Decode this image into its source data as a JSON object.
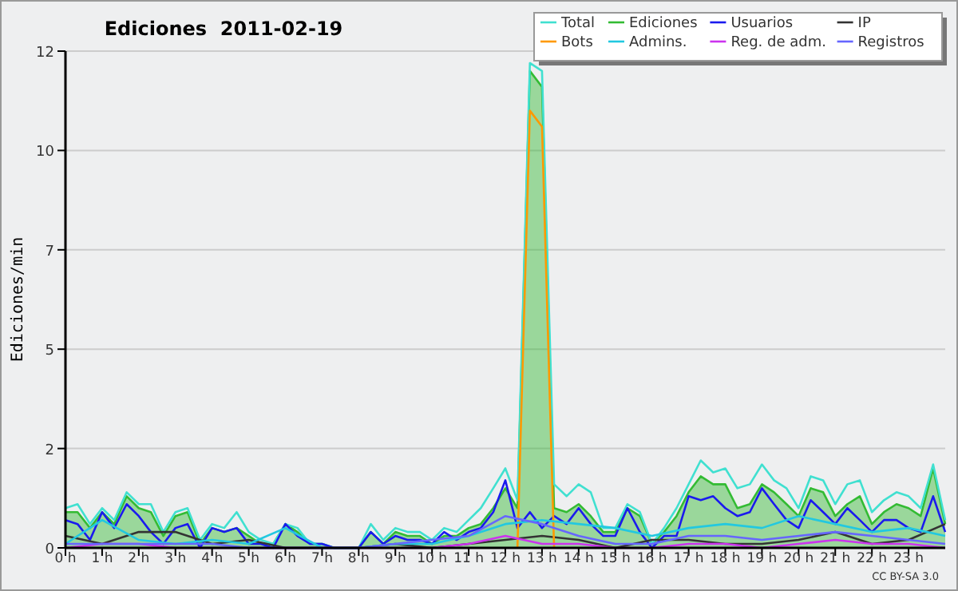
{
  "chart_data": {
    "type": "line",
    "title": "Ediciones  2011-02-19",
    "ylabel": "Ediciones/min",
    "annotations": [
      "CC BY-SA 3.0"
    ],
    "xlim": [
      0,
      24
    ],
    "xticks": [
      {
        "value": 0,
        "label": "0 h"
      },
      {
        "value": 1,
        "label": "1 h"
      },
      {
        "value": 2,
        "label": "2 h"
      },
      {
        "value": 3,
        "label": "3 h"
      },
      {
        "value": 4,
        "label": "4 h"
      },
      {
        "value": 5,
        "label": "5 h"
      },
      {
        "value": 6,
        "label": "6 h"
      },
      {
        "value": 7,
        "label": "7 h"
      },
      {
        "value": 8,
        "label": "8 h"
      },
      {
        "value": 9,
        "label": "9 h"
      },
      {
        "value": 10,
        "label": "10 h"
      },
      {
        "value": 11,
        "label": "11 h"
      },
      {
        "value": 12,
        "label": "12 h"
      },
      {
        "value": 13,
        "label": "13 h"
      },
      {
        "value": 14,
        "label": "14 h"
      },
      {
        "value": 15,
        "label": "15 h"
      },
      {
        "value": 16,
        "label": "16 h"
      },
      {
        "value": 17,
        "label": "17 h"
      },
      {
        "value": 18,
        "label": "18 h"
      },
      {
        "value": 19,
        "label": "19 h"
      },
      {
        "value": 20,
        "label": "20 h"
      },
      {
        "value": 21,
        "label": "21 h"
      },
      {
        "value": 22,
        "label": "22 h"
      },
      {
        "value": 23,
        "label": "23 h"
      }
    ],
    "ylim": [
      0,
      12.5
    ],
    "yticks": [
      0,
      {
        "value": 2.5,
        "label": "2"
      },
      5,
      {
        "value": 7.5,
        "label": "7"
      },
      10,
      {
        "value": 12.5,
        "label": "12"
      }
    ],
    "grid": "y",
    "legend": "top right",
    "marker": "none",
    "line_style": "solid",
    "x": [
      0,
      0.33,
      0.67,
      1,
      1.33,
      1.67,
      2,
      2.33,
      2.67,
      3,
      3.33,
      3.67,
      4,
      4.33,
      4.67,
      5,
      5.33,
      5.67,
      6,
      6.33,
      6.67,
      7,
      7.33,
      7.67,
      8,
      8.33,
      8.67,
      9,
      9.33,
      9.67,
      10,
      10.33,
      10.67,
      11,
      11.33,
      11.67,
      12,
      12.33,
      12.67,
      13,
      13.33,
      13.67,
      14,
      14.33,
      14.67,
      15,
      15.33,
      15.67,
      16,
      16.33,
      16.67,
      17,
      17.33,
      17.67,
      18,
      18.33,
      18.67,
      19,
      19.33,
      19.67,
      20,
      20.33,
      20.67,
      21,
      21.33,
      21.67,
      22,
      22.33,
      22.67,
      23,
      23.33,
      23.67,
      24
    ],
    "series": [
      {
        "name": "Total",
        "color": "#40e0d0",
        "values": [
          1.0,
          1.1,
          0.6,
          1.0,
          0.7,
          1.4,
          1.1,
          1.1,
          0.4,
          0.9,
          1.0,
          0.2,
          0.6,
          0.5,
          0.9,
          0.4,
          0.2,
          0.1,
          0.6,
          0.5,
          0.1,
          0.1,
          0,
          0,
          0,
          0.6,
          0.2,
          0.5,
          0.4,
          0.4,
          0.2,
          0.5,
          0.4,
          0.7,
          1.0,
          1.5,
          2.0,
          1.2,
          12.2,
          12.0,
          1.6,
          1.3,
          1.6,
          1.4,
          0.5,
          0.5,
          1.1,
          0.9,
          0.1,
          0.5,
          1.0,
          1.6,
          2.2,
          1.9,
          2.0,
          1.5,
          1.6,
          2.1,
          1.7,
          1.5,
          1.0,
          1.8,
          1.7,
          1.1,
          1.6,
          1.7,
          0.9,
          1.2,
          1.4,
          1.3,
          1.0,
          2.1,
          0.7
        ]
      },
      {
        "name": "Ediciones",
        "type": "area",
        "color": "#33bb33",
        "values": [
          0.9,
          0.9,
          0.5,
          0.9,
          0.6,
          1.3,
          1.0,
          0.9,
          0.3,
          0.8,
          0.9,
          0.1,
          0.5,
          0.4,
          0.5,
          0.3,
          0.1,
          0.1,
          0.6,
          0.4,
          0.1,
          0.1,
          0,
          0,
          0,
          0.4,
          0.1,
          0.4,
          0.3,
          0.3,
          0.1,
          0.3,
          0.3,
          0.5,
          0.6,
          1.0,
          1.5,
          1.0,
          12.0,
          11.6,
          1.0,
          0.9,
          1.1,
          0.8,
          0.4,
          0.4,
          1.0,
          0.8,
          0.1,
          0.4,
          0.8,
          1.4,
          1.8,
          1.6,
          1.6,
          1.0,
          1.1,
          1.6,
          1.4,
          1.1,
          0.8,
          1.5,
          1.4,
          0.8,
          1.1,
          1.3,
          0.6,
          0.9,
          1.1,
          1.0,
          0.8,
          2.0,
          0.6
        ]
      },
      {
        "name": "Usuarios",
        "color": "#1a1aee",
        "values": [
          0.7,
          0.6,
          0.2,
          0.9,
          0.5,
          1.1,
          0.8,
          0.4,
          0.1,
          0.5,
          0.6,
          0,
          0.5,
          0.4,
          0.5,
          0.1,
          0.1,
          0,
          0.6,
          0.3,
          0.1,
          0.1,
          0,
          0,
          0,
          0.4,
          0.1,
          0.3,
          0.2,
          0.2,
          0.1,
          0.4,
          0.2,
          0.4,
          0.5,
          0.9,
          1.7,
          0.5,
          0.9,
          0.5,
          0.8,
          0.6,
          1.0,
          0.6,
          0.3,
          0.3,
          1.0,
          0.4,
          0,
          0.3,
          0.3,
          1.3,
          1.2,
          1.3,
          1.0,
          0.8,
          0.9,
          1.5,
          1.1,
          0.7,
          0.5,
          1.2,
          0.9,
          0.6,
          1.0,
          0.7,
          0.4,
          0.7,
          0.7,
          0.5,
          0.4,
          1.3,
          0.4
        ]
      },
      {
        "name": "IP",
        "color": "#333333",
        "x": [
          0,
          1,
          2,
          3,
          4,
          5,
          6,
          7,
          8,
          9,
          10,
          11,
          12,
          13,
          14,
          15,
          16,
          17,
          18,
          19,
          20,
          21,
          22,
          23,
          24
        ],
        "values": [
          0.3,
          0.1,
          0.4,
          0.4,
          0.1,
          0.2,
          0,
          0,
          0,
          0.1,
          0,
          0.1,
          0.2,
          0.3,
          0.2,
          0,
          0.2,
          0.2,
          0.1,
          0.1,
          0.2,
          0.4,
          0.1,
          0.2,
          0.6
        ]
      },
      {
        "name": "Bots",
        "color": "#ff9900",
        "values": [
          null,
          null,
          null,
          null,
          null,
          null,
          null,
          null,
          null,
          null,
          null,
          null,
          null,
          null,
          null,
          null,
          null,
          null,
          null,
          null,
          null,
          null,
          null,
          null,
          null,
          null,
          null,
          null,
          null,
          null,
          null,
          null,
          null,
          null,
          null,
          null,
          null,
          0,
          11.0,
          10.6,
          0,
          null,
          null,
          null,
          null,
          null,
          null,
          null,
          null,
          null,
          null,
          null,
          null,
          null,
          null,
          null,
          null,
          null,
          null,
          null,
          null,
          null,
          null,
          null,
          null,
          null,
          null,
          null,
          null,
          null,
          null,
          null,
          null
        ]
      },
      {
        "name": "Admins.",
        "color": "#22c8e0",
        "x": [
          0,
          1,
          2,
          3,
          4,
          5,
          6,
          7,
          8,
          9,
          10,
          11,
          12,
          13,
          14,
          15,
          16,
          17,
          18,
          19,
          20,
          21,
          22,
          23,
          24
        ],
        "values": [
          0.1,
          0.7,
          0.2,
          0.1,
          0.2,
          0.1,
          0.5,
          0,
          0,
          0.1,
          0.1,
          0.3,
          0.6,
          0.7,
          0.6,
          0.5,
          0.3,
          0.5,
          0.6,
          0.5,
          0.8,
          0.6,
          0.4,
          0.5,
          0.3
        ]
      },
      {
        "name": "Reg. de adm.",
        "color": "#cc33ee",
        "x": [
          0,
          1,
          2,
          3,
          4,
          5,
          6,
          7,
          8,
          9,
          10,
          11,
          12,
          13,
          14,
          15,
          16,
          17,
          18,
          19,
          20,
          21,
          22,
          23,
          24
        ],
        "values": [
          0,
          0.1,
          0.1,
          0,
          0,
          0,
          0,
          0,
          0,
          0,
          0,
          0.1,
          0.3,
          0.1,
          0.1,
          0,
          0,
          0.1,
          0.1,
          0,
          0.1,
          0.2,
          0.1,
          0.1,
          0
        ]
      },
      {
        "name": "Registros",
        "color": "#6666ff",
        "x": [
          0,
          1,
          2,
          3,
          4,
          5,
          6,
          7,
          8,
          9,
          10,
          11,
          12,
          13,
          14,
          15,
          16,
          17,
          18,
          19,
          20,
          21,
          22,
          23,
          24
        ],
        "values": [
          0.1,
          0.1,
          0.1,
          0.1,
          0.1,
          0,
          0,
          0,
          0,
          0.1,
          0.2,
          0.3,
          0.8,
          0.6,
          0.3,
          0.1,
          0.1,
          0.3,
          0.3,
          0.2,
          0.3,
          0.4,
          0.3,
          0.2,
          0.1
        ]
      }
    ]
  }
}
